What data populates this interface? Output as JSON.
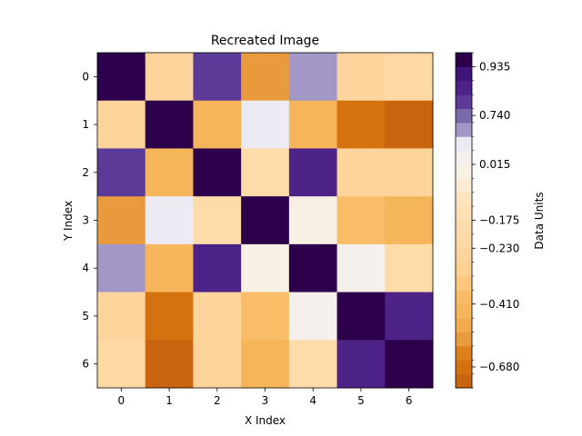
{
  "chart_data": {
    "type": "heatmap",
    "title": "Recreated Image",
    "xlabel": "X Index",
    "ylabel": "Y Index",
    "x_categories": [
      "0",
      "1",
      "2",
      "3",
      "4",
      "5",
      "6"
    ],
    "y_categories": [
      "0",
      "1",
      "2",
      "3",
      "4",
      "5",
      "6"
    ],
    "matrix": [
      [
        1.0,
        -0.24,
        0.81,
        -0.6,
        0.67,
        -0.24,
        -0.22
      ],
      [
        -0.24,
        1.0,
        -0.42,
        0.52,
        -0.42,
        -0.68,
        -0.71
      ],
      [
        0.81,
        -0.42,
        1.0,
        -0.18,
        0.85,
        -0.24,
        -0.25
      ],
      [
        -0.6,
        0.52,
        -0.18,
        1.0,
        -0.05,
        -0.41,
        -0.45
      ],
      [
        0.67,
        -0.42,
        0.85,
        -0.05,
        1.0,
        0.02,
        -0.2
      ],
      [
        -0.24,
        -0.68,
        -0.24,
        -0.41,
        0.02,
        1.0,
        0.87
      ],
      [
        -0.22,
        -0.71,
        -0.25,
        -0.45,
        -0.2,
        0.87,
        1.0
      ]
    ],
    "colorbar": {
      "label": "Data Units",
      "tick_labels": [
        "0.935",
        "0.740",
        "0.015",
        "−0.175",
        "−0.230",
        "−0.410",
        "−0.680"
      ],
      "bin_edges": [
        -0.75,
        -0.7,
        -0.66,
        -0.6,
        -0.5,
        -0.45,
        -0.41,
        -0.38,
        -0.3,
        -0.25,
        -0.23,
        -0.2,
        -0.175,
        -0.15,
        -0.1,
        -0.05,
        0.015,
        0.05,
        0.55,
        0.7,
        0.78,
        0.83,
        0.88,
        0.935,
        1.0
      ],
      "bin_colors": [
        "#c9650e",
        "#d3720f",
        "#dd7f1a",
        "#e99a3d",
        "#f2aa4c",
        "#f6b55a",
        "#f9bd67",
        "#fcc77c",
        "#fdd090",
        "#fdd59c",
        "#fed9a3",
        "#fedcaa",
        "#fee0b4",
        "#fde4bd",
        "#fcebd2",
        "#f8efe5",
        "#f6f0ec",
        "#eceaf3",
        "#a297c6",
        "#7a68aa",
        "#5c3a98",
        "#4d2388",
        "#3e1476",
        "#2d004b"
      ]
    }
  }
}
